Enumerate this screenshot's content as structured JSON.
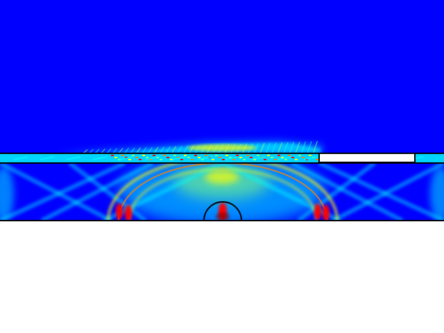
{
  "figure": {
    "kind": "wave field intensity map",
    "colormap": [
      "#0000ff",
      "#00bfff",
      "#00ffff",
      "#7fff7f",
      "#ffff00",
      "#ff7f00",
      "#ff0000",
      "#800000"
    ],
    "background_color": "#0000ff",
    "outline_color": "#000000",
    "empty_region_color": "#ffffff"
  }
}
